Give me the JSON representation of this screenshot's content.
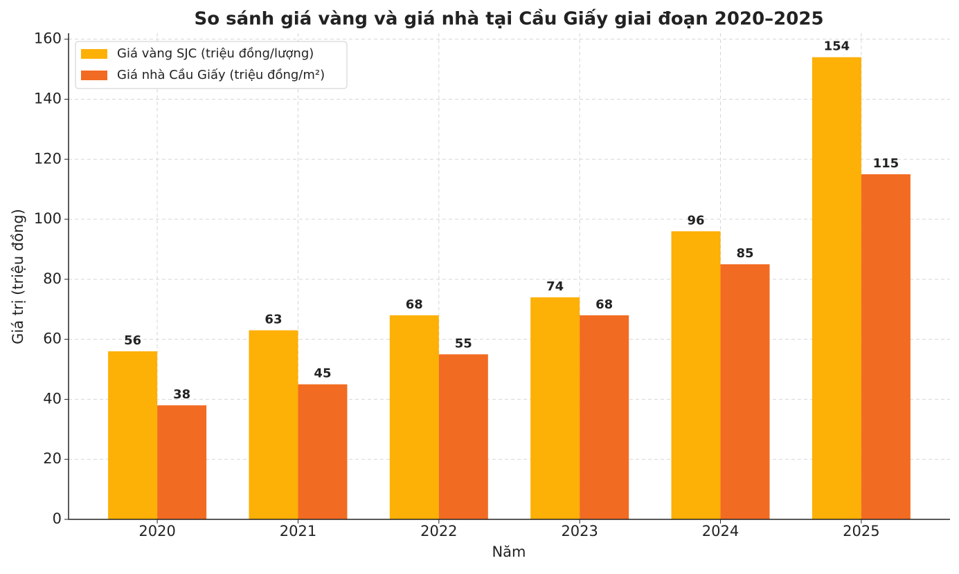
{
  "chart_data": {
    "type": "bar",
    "title": "So sánh giá vàng và giá nhà tại Cầu Giấy giai đoạn 2020–2025",
    "x_label": "Năm",
    "y_label": "Giá trị (triệu đồng)",
    "categories": [
      "2020",
      "2021",
      "2022",
      "2023",
      "2024",
      "2025"
    ],
    "series": [
      {
        "name": "Giá vàng SJC (triệu đồng/lượng)",
        "color": "#fdb005",
        "values": [
          56,
          63,
          68,
          74,
          96,
          154
        ]
      },
      {
        "name": "Giá nhà Cầu Giấy (triệu đồng/m²)",
        "color": "#f26b22",
        "values": [
          38,
          45,
          55,
          68,
          85,
          115
        ]
      }
    ],
    "ylim": [
      0,
      162
    ],
    "yticks": [
      0,
      20,
      40,
      60,
      80,
      100,
      120,
      140,
      160
    ],
    "grid": true,
    "legend": "upper-left"
  }
}
